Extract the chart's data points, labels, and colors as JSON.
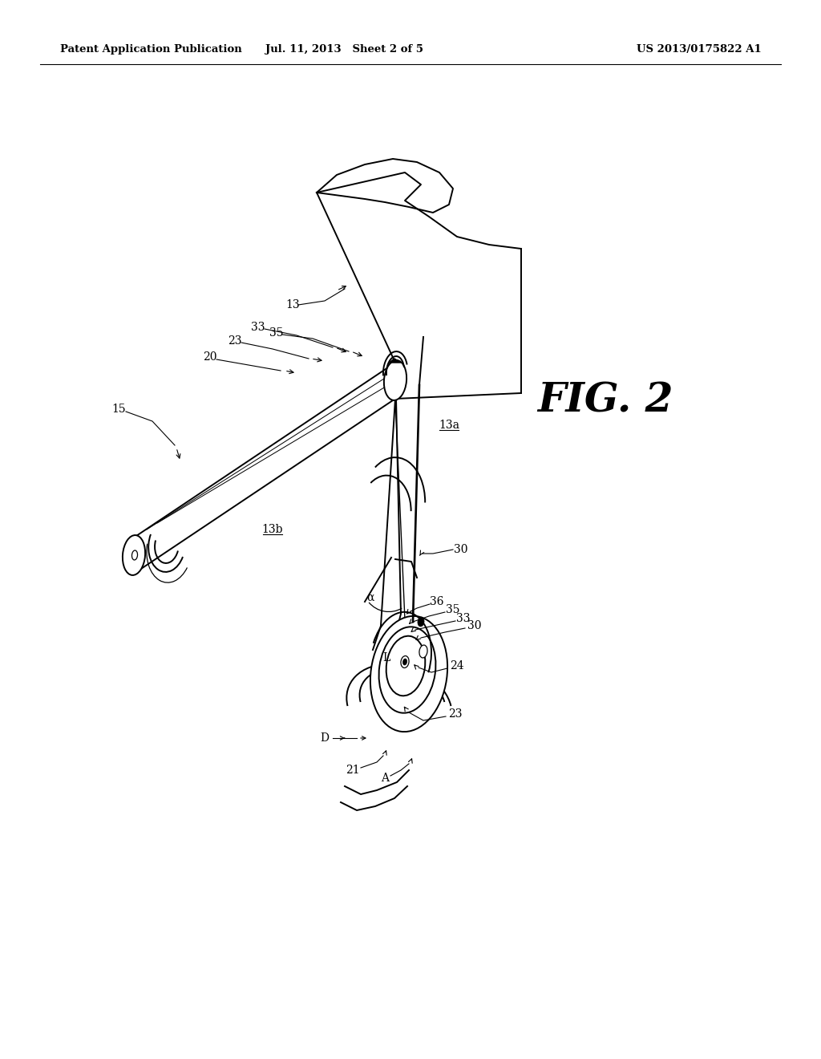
{
  "bg_color": "#ffffff",
  "line_color": "#000000",
  "header_left": "Patent Application Publication",
  "header_mid": "Jul. 11, 2013   Sheet 2 of 5",
  "header_right": "US 2013/0175822 A1",
  "fig_label": "FIG. 2",
  "lw_main": 1.4,
  "lw_thin": 0.9
}
